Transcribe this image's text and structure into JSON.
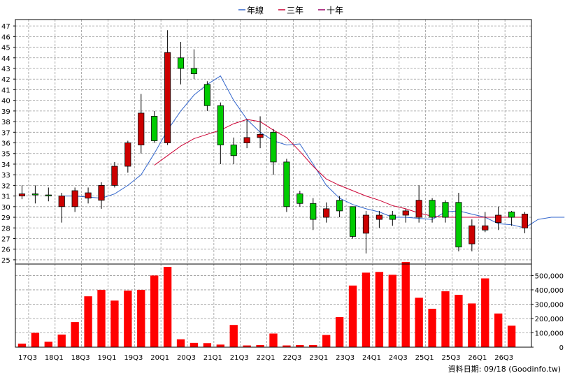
{
  "colors": {
    "up": "#cc0000",
    "down": "#00cc00",
    "volume": "#ff0000",
    "grid": "#999999",
    "frame": "#000000"
  },
  "footer": "資料日期: 09/18  (Goodinfo.tw)",
  "chart_data": {
    "type": "candlestick",
    "legend": {
      "placement": "top-center",
      "items": [
        {
          "label": "年線",
          "color": "#3366cc"
        },
        {
          "label": "三年",
          "color": "#cc0033"
        },
        {
          "label": "十年",
          "color": "#990066"
        }
      ]
    },
    "price_axis": {
      "min": 24.6,
      "max": 47.6,
      "ticks": [
        25,
        26,
        27,
        28,
        29,
        30,
        31,
        32,
        33,
        34,
        35,
        36,
        37,
        38,
        39,
        40,
        41,
        42,
        43,
        44,
        45,
        46,
        47
      ]
    },
    "volume_axis": {
      "min": 0,
      "max": 580000,
      "ticks": [
        0,
        100000,
        200000,
        300000,
        400000,
        500000
      ],
      "tick_labels": [
        "0",
        "100,000",
        "200,000",
        "300,000",
        "400,000",
        "500,000"
      ]
    },
    "x_labels": [
      "17Q3",
      "18Q1",
      "18Q3",
      "19Q1",
      "19Q3",
      "20Q1",
      "20Q3",
      "21Q1",
      "21Q3",
      "22Q1",
      "22Q3",
      "23Q1",
      "23Q3",
      "24Q1",
      "24Q3",
      "25Q1",
      "25Q3",
      "26Q1",
      "26Q3"
    ],
    "label_every": 2,
    "candles": [
      {
        "p": "17Q3a",
        "o": 31.0,
        "h": 32.0,
        "l": 30.7,
        "c": 31.2
      },
      {
        "p": "17Q3b",
        "o": 31.2,
        "h": 32.0,
        "l": 30.3,
        "c": 31.1
      },
      {
        "p": "17Q4a",
        "o": 31.1,
        "h": 31.8,
        "l": 30.5,
        "c": 31.0
      },
      {
        "p": "18Q1a",
        "o": 30.0,
        "h": 31.3,
        "l": 28.5,
        "c": 31.0
      },
      {
        "p": "18Q1b",
        "o": 30.0,
        "h": 31.8,
        "l": 29.5,
        "c": 31.5
      },
      {
        "p": "18Q2a",
        "o": 30.8,
        "h": 31.8,
        "l": 30.3,
        "c": 31.3
      },
      {
        "p": "18Q3a",
        "o": 30.6,
        "h": 32.3,
        "l": 29.8,
        "c": 32.0
      },
      {
        "p": "18Q3b",
        "o": 32.0,
        "h": 34.2,
        "l": 31.8,
        "c": 33.8
      },
      {
        "p": "18Q4a",
        "o": 33.8,
        "h": 36.2,
        "l": 33.2,
        "c": 36.0
      },
      {
        "p": "19Q1a",
        "o": 35.8,
        "h": 40.6,
        "l": 35.0,
        "c": 38.8
      },
      {
        "p": "19Q1b",
        "o": 38.5,
        "h": 39.0,
        "l": 36.0,
        "c": 36.2
      },
      {
        "p": "19Q2a",
        "o": 36.0,
        "h": 46.6,
        "l": 35.8,
        "c": 44.5
      },
      {
        "p": "19Q3a",
        "o": 44.0,
        "h": 45.5,
        "l": 41.5,
        "c": 43.0
      },
      {
        "p": "19Q3b",
        "o": 43.0,
        "h": 44.8,
        "l": 42.0,
        "c": 42.5
      },
      {
        "p": "19Q4a",
        "o": 41.5,
        "h": 41.8,
        "l": 39.0,
        "c": 39.5
      },
      {
        "p": "20Q1a",
        "o": 39.5,
        "h": 39.8,
        "l": 34.0,
        "c": 35.8
      },
      {
        "p": "20Q1b",
        "o": 35.8,
        "h": 36.5,
        "l": 34.0,
        "c": 34.8
      },
      {
        "p": "20Q2a",
        "o": 36.0,
        "h": 38.2,
        "l": 35.5,
        "c": 36.5
      },
      {
        "p": "20Q3a",
        "o": 36.5,
        "h": 38.5,
        "l": 35.5,
        "c": 36.8
      },
      {
        "p": "20Q3b",
        "o": 37.0,
        "h": 37.3,
        "l": 33.0,
        "c": 34.2
      },
      {
        "p": "20Q4a",
        "o": 34.2,
        "h": 34.5,
        "l": 29.5,
        "c": 30.0
      },
      {
        "p": "21Q1a",
        "o": 31.2,
        "h": 31.5,
        "l": 30.0,
        "c": 30.3
      },
      {
        "p": "21Q1b",
        "o": 30.3,
        "h": 30.8,
        "l": 27.8,
        "c": 28.8
      },
      {
        "p": "21Q2a",
        "o": 29.0,
        "h": 30.4,
        "l": 28.5,
        "c": 29.8
      },
      {
        "p": "21Q3a",
        "o": 30.6,
        "h": 31.0,
        "l": 29.0,
        "c": 29.6
      },
      {
        "p": "21Q3b",
        "o": 30.0,
        "h": 30.0,
        "l": 27.0,
        "c": 27.2
      },
      {
        "p": "21Q4a",
        "o": 27.5,
        "h": 29.6,
        "l": 25.6,
        "c": 29.2
      },
      {
        "p": "22Q1a",
        "o": 28.8,
        "h": 29.6,
        "l": 28.0,
        "c": 29.2
      },
      {
        "p": "22Q1b",
        "o": 29.2,
        "h": 29.6,
        "l": 28.2,
        "c": 28.8
      },
      {
        "p": "22Q2a",
        "o": 29.2,
        "h": 29.8,
        "l": 28.5,
        "c": 29.6
      },
      {
        "p": "22Q3a",
        "o": 29.0,
        "h": 32.0,
        "l": 28.5,
        "c": 30.6
      },
      {
        "p": "22Q3b",
        "o": 30.6,
        "h": 30.8,
        "l": 28.5,
        "c": 29.0
      },
      {
        "p": "22Q4a",
        "o": 30.4,
        "h": 30.6,
        "l": 28.5,
        "c": 29.0
      },
      {
        "p": "23Q1a",
        "o": 30.4,
        "h": 31.3,
        "l": 25.8,
        "c": 26.2
      },
      {
        "p": "23Q1b",
        "o": 26.5,
        "h": 28.8,
        "l": 25.8,
        "c": 28.2
      },
      {
        "p": "23Q2a",
        "o": 27.8,
        "h": 29.5,
        "l": 27.6,
        "c": 28.2
      },
      {
        "p": "23Q3a",
        "o": 28.5,
        "h": 30.0,
        "l": 27.8,
        "c": 29.2
      },
      {
        "p": "23Q3b",
        "o": 29.5,
        "h": 29.6,
        "l": 28.2,
        "c": 29.0
      },
      {
        "p": "23Q4a",
        "o": 28.0,
        "h": 29.5,
        "l": 27.5,
        "c": 29.3
      }
    ],
    "moving_averages": [
      {
        "name": "年線",
        "color": "#3366cc",
        "start": 3,
        "values": [
          31.0,
          31.0,
          30.9,
          30.8,
          31.2,
          32.0,
          33.0,
          35.0,
          37.2,
          39.0,
          40.5,
          41.5,
          42.3,
          40.0,
          38.2,
          37.0,
          36.2,
          35.8,
          35.9,
          34.0,
          32.0,
          30.8,
          30.2,
          29.8,
          29.5,
          29.0,
          29.0,
          28.9,
          28.8,
          29.5,
          29.6,
          29.3,
          29.0,
          28.4,
          28.3,
          28.0,
          28.8,
          29.0,
          29.0
        ]
      },
      {
        "name": "三年",
        "color": "#cc0033",
        "start": 10,
        "values": [
          33.9,
          34.8,
          35.7,
          36.4,
          36.8,
          37.2,
          37.8,
          38.2,
          38.0,
          37.2,
          36.5,
          35.2,
          33.8,
          32.6,
          32.0,
          31.5,
          31.0,
          30.6,
          30.1,
          29.8,
          29.4,
          29.1,
          29.0,
          29.0,
          29.0,
          29.0,
          29.0,
          29.0,
          29.0
        ]
      }
    ],
    "volumes": [
      {
        "x": 0,
        "v": 25000
      },
      {
        "x": 1,
        "v": 100000
      },
      {
        "x": 2,
        "v": 38000
      },
      {
        "x": 3,
        "v": 88000
      },
      {
        "x": 4,
        "v": 175000
      },
      {
        "x": 5,
        "v": 355000
      },
      {
        "x": 6,
        "v": 400000
      },
      {
        "x": 7,
        "v": 325000
      },
      {
        "x": 8,
        "v": 395000
      },
      {
        "x": 9,
        "v": 400000
      },
      {
        "x": 10,
        "v": 500000
      },
      {
        "x": 11,
        "v": 560000
      },
      {
        "x": 12,
        "v": 55000
      },
      {
        "x": 13,
        "v": 30000
      },
      {
        "x": 14,
        "v": 28000
      },
      {
        "x": 15,
        "v": 18000
      },
      {
        "x": 16,
        "v": 155000
      },
      {
        "x": 17,
        "v": 12000
      },
      {
        "x": 18,
        "v": 15000
      },
      {
        "x": 19,
        "v": 95000
      },
      {
        "x": 20,
        "v": 12000
      },
      {
        "x": 21,
        "v": 15000
      },
      {
        "x": 22,
        "v": 15000
      },
      {
        "x": 23,
        "v": 85000
      },
      {
        "x": 24,
        "v": 210000
      },
      {
        "x": 25,
        "v": 430000
      },
      {
        "x": 26,
        "v": 520000
      },
      {
        "x": 27,
        "v": 525000
      },
      {
        "x": 28,
        "v": 505000
      },
      {
        "x": 29,
        "v": 595000
      },
      {
        "x": 30,
        "v": 345000
      },
      {
        "x": 31,
        "v": 268000
      },
      {
        "x": 32,
        "v": 390000
      },
      {
        "x": 33,
        "v": 365000
      },
      {
        "x": 34,
        "v": 305000
      },
      {
        "x": 35,
        "v": 480000
      },
      {
        "x": 36,
        "v": 235000
      },
      {
        "x": 37,
        "v": 150000
      }
    ]
  }
}
